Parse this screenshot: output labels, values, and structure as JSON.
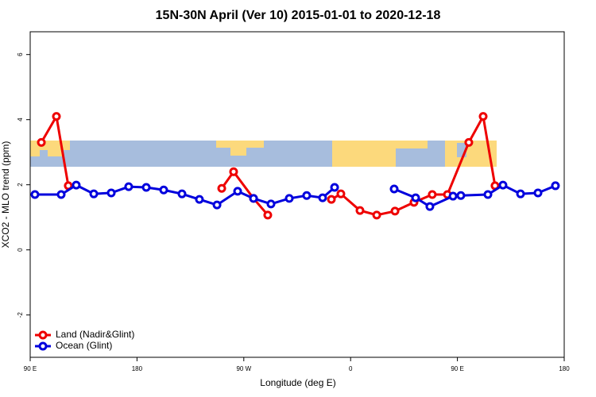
{
  "chart_data": {
    "type": "line",
    "title": "15N-30N April (Ver 10)   2015-01-01 to 2020-12-18",
    "x_label": "Longitude (deg E)",
    "y_label": "XCO2 - MLO trend (ppm)",
    "xlim": [
      90,
      540
    ],
    "ylim": [
      -3.3,
      6.7
    ],
    "xticks": [
      {
        "value": 90,
        "label": "90 E"
      },
      180,
      {
        "value": 270,
        "label": "90 W"
      },
      {
        "value": 360,
        "label": "0"
      },
      {
        "value": 450,
        "label": "90 E"
      },
      {
        "value": 540,
        "label": "180"
      }
    ],
    "yticks": [
      -2,
      0,
      2,
      4,
      6
    ],
    "legend": "bottom-left",
    "series": [
      {
        "name": "Land (Nadir&Glint)",
        "color": "#ee0000",
        "x": [
          99.4,
          112.1,
          122.1,
          null,
          251.4,
          261.4,
          278.2,
          290.2,
          null,
          343.8,
          351.8,
          367.9,
          382.0,
          397.4,
          413.4,
          428.8,
          441.6,
          459.6,
          471.7,
          481.7
        ],
        "values": [
          3.3,
          4.1,
          1.97,
          null,
          1.89,
          2.4,
          1.58,
          1.07,
          null,
          1.55,
          1.72,
          1.21,
          1.07,
          1.19,
          1.46,
          1.7,
          1.7,
          3.3,
          4.1,
          1.97
        ]
      },
      {
        "name": "Ocean (Glint)",
        "color": "#0000dd",
        "x": [
          94.0,
          116.1,
          128.8,
          143.6,
          158.3,
          173.0,
          187.8,
          202.5,
          217.9,
          232.6,
          247.4,
          264.8,
          278.2,
          292.9,
          308.3,
          323.0,
          336.4,
          346.5,
          null,
          396.7,
          414.8,
          426.8,
          446.3,
          452.9,
          475.7,
          488.4,
          503.2,
          517.9,
          532.6
        ],
        "values": [
          1.7,
          1.7,
          1.99,
          1.72,
          1.75,
          1.94,
          1.92,
          1.84,
          1.72,
          1.55,
          1.38,
          1.8,
          1.58,
          1.41,
          1.58,
          1.67,
          1.6,
          1.92,
          null,
          1.87,
          1.6,
          1.33,
          1.65,
          1.67,
          1.7,
          1.99,
          1.72,
          1.75,
          1.97
        ]
      }
    ]
  }
}
